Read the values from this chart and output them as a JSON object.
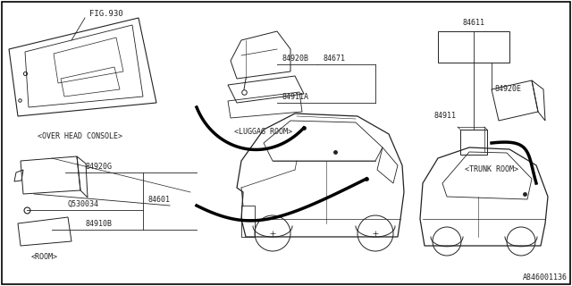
{
  "bg_color": "#ffffff",
  "border_color": "#000000",
  "line_color": "#222222",
  "fig_num": "FIG.930",
  "diagram_code": "A846001136",
  "overhead_label": "<OVER HEAD CONSOLE>",
  "room_label": "<ROOM>",
  "luggag_label": "<LUGGAG ROOM>",
  "trunk_label": "<TRUNK ROOM>",
  "pn_84920B": "84920B",
  "pn_84671": "84671",
  "pn_84911A": "84911A",
  "pn_84920G": "84920G",
  "pn_0530034": "Q530034",
  "pn_84910B": "84910B",
  "pn_84601": "84601",
  "pn_84611": "84611",
  "pn_84920E": "84920E",
  "pn_84911": "84911"
}
